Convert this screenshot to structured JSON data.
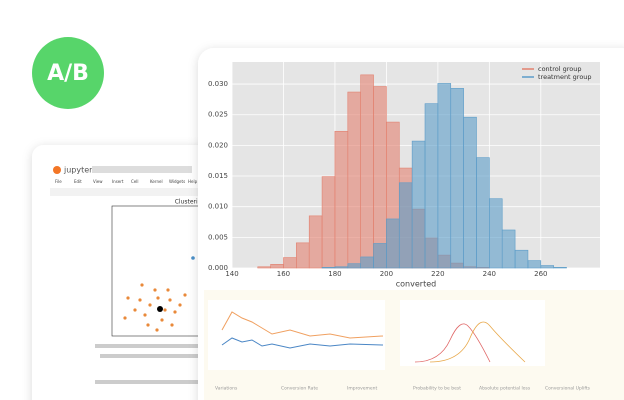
{
  "badge": "A/B",
  "notebook": {
    "brand": "jupyter",
    "menu": [
      "File",
      "Edit",
      "View",
      "Insert",
      "Cell",
      "Kernel",
      "Widgets",
      "Help"
    ],
    "plot_title": "Clustering"
  },
  "chart_data": {
    "type": "histogram",
    "xlabel": "converted",
    "bins": [
      140,
      145,
      150,
      155,
      160,
      165,
      170,
      175,
      180,
      185,
      190,
      195,
      200,
      205,
      210,
      215,
      220,
      225,
      230,
      235,
      240,
      245,
      250,
      255,
      260,
      265,
      270,
      275
    ],
    "series": [
      {
        "name": "control group",
        "color": "#e2806f",
        "values": [
          0,
          0,
          0.0002,
          0.0006,
          0.0017,
          0.0041,
          0.0085,
          0.0149,
          0.0223,
          0.0287,
          0.0315,
          0.0296,
          0.0238,
          0.0163,
          0.0096,
          0.0049,
          0.0021,
          0.0008,
          0.0002,
          0.0001,
          0,
          0,
          0,
          0,
          0,
          0,
          0
        ]
      },
      {
        "name": "treatment group",
        "color": "#5b9cc8",
        "values": [
          0,
          0,
          0,
          0,
          0,
          0,
          0,
          0.0001,
          0.0002,
          0.0007,
          0.0018,
          0.004,
          0.008,
          0.0139,
          0.0207,
          0.0268,
          0.0301,
          0.0293,
          0.0246,
          0.018,
          0.0113,
          0.0062,
          0.0029,
          0.0012,
          0.0004,
          0.0001,
          0
        ]
      }
    ],
    "xlim": [
      140,
      283
    ],
    "xticks": [
      140,
      160,
      180,
      200,
      220,
      240,
      260
    ],
    "ylim": [
      0,
      0.0336
    ],
    "yticks": [
      {
        "value": 0,
        "label": "0.000"
      },
      {
        "value": 0.005,
        "label": "0.005"
      },
      {
        "value": 0.01,
        "label": "0.010"
      },
      {
        "value": 0.015,
        "label": "0.015"
      },
      {
        "value": 0.02,
        "label": "0.020"
      },
      {
        "value": 0.025,
        "label": "0.025"
      },
      {
        "value": 0.03,
        "label": "0.030"
      }
    ],
    "grid": true,
    "legend": "top-right"
  },
  "table": {
    "headers": [
      "Variations",
      "Conversion Rate",
      "Improvement",
      "Probability to be best",
      "Absolute potential loss",
      "Conversional Uplifts"
    ]
  }
}
